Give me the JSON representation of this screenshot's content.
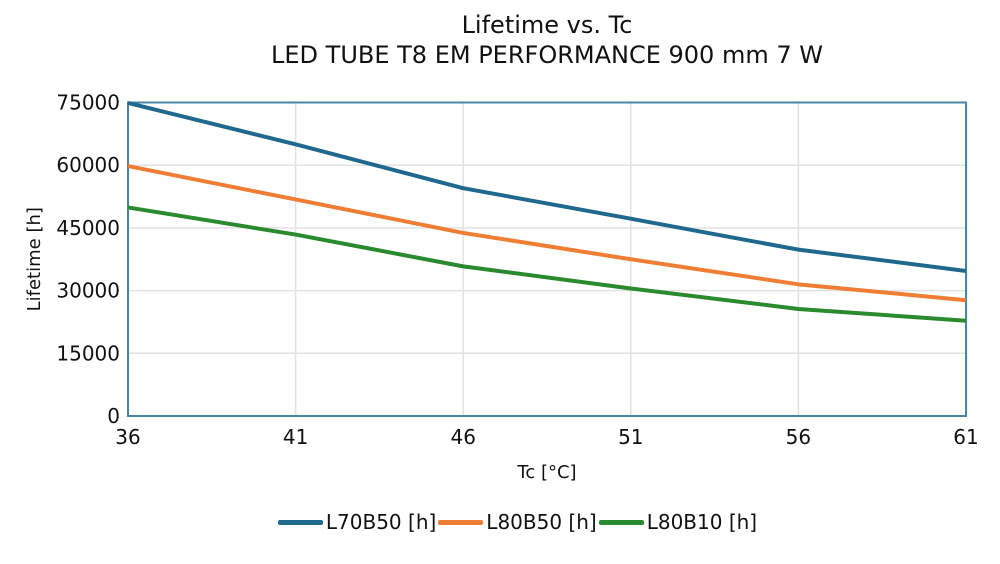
{
  "title": {
    "line1": "Lifetime vs. Tc",
    "line2": "LED TUBE T8 EM PERFORMANCE 900 mm 7 W"
  },
  "chart_data": {
    "type": "line",
    "title": "Lifetime vs. Tc",
    "subtitle": "LED TUBE T8 EM PERFORMANCE 900 mm 7 W",
    "xlabel": "Tc [°C]",
    "ylabel": "Lifetime [h]",
    "x": [
      36,
      41,
      46,
      51,
      56,
      61
    ],
    "series": [
      {
        "name": "L70B50 [h]",
        "color": "#1f698f",
        "values": [
          74900,
          65000,
          54500,
          47200,
          39800,
          34700
        ]
      },
      {
        "name": "L80B50 [h]",
        "color": "#ef7d33",
        "values": [
          59800,
          51800,
          43800,
          37500,
          31500,
          27700
        ]
      },
      {
        "name": "L80B10 [h]",
        "color": "#2a8a2e",
        "values": [
          49900,
          43400,
          35800,
          30500,
          25600,
          22800
        ]
      }
    ],
    "xlim": [
      36,
      61
    ],
    "ylim": [
      0,
      75000
    ],
    "xticks": [
      36,
      41,
      46,
      51,
      56,
      61
    ],
    "yticks": [
      0,
      15000,
      30000,
      45000,
      60000,
      75000
    ],
    "grid": true,
    "legend_position": "bottom",
    "colors": {
      "axis_frame": "#4886a6",
      "gridline": "#e2e2e2",
      "text": "#111111",
      "background": "#ffffff"
    }
  }
}
